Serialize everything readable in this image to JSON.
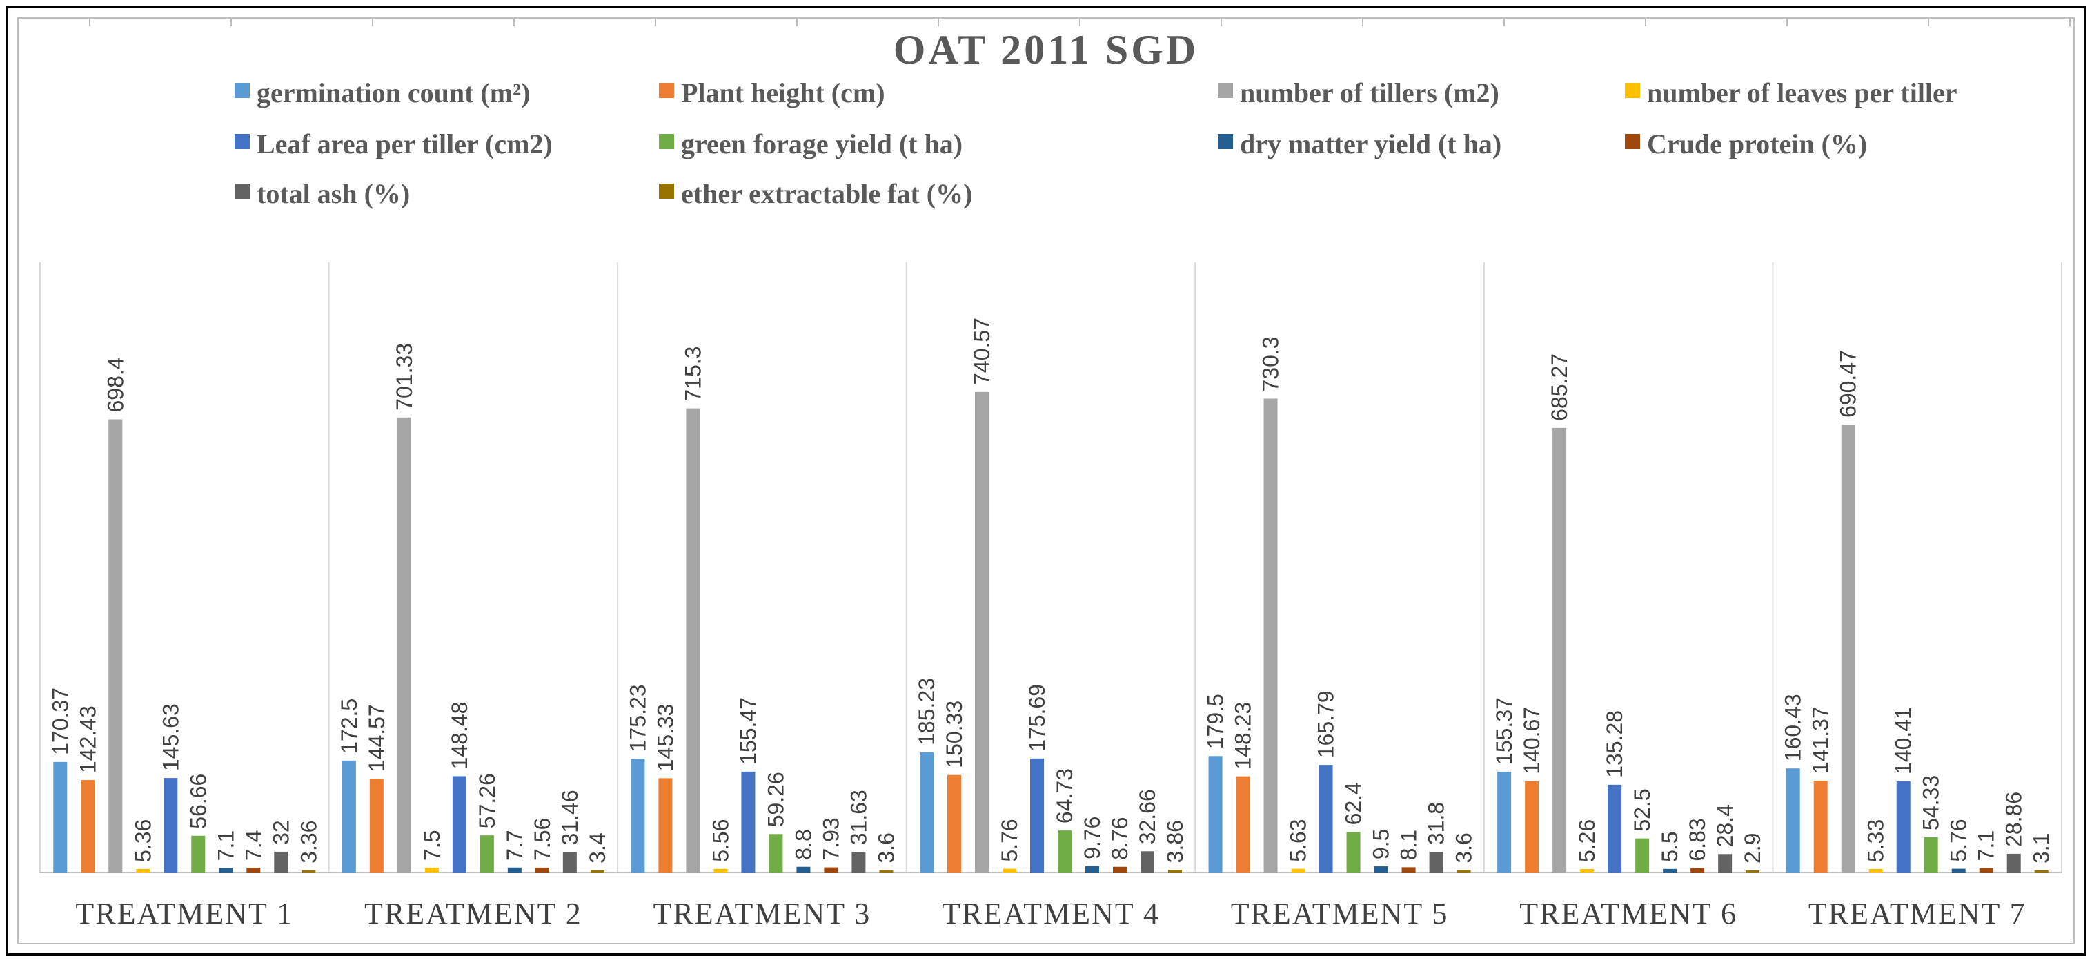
{
  "chart_data": {
    "type": "bar",
    "title": "OAT 2011 SGD",
    "xlabel": "",
    "ylabel": "",
    "ylim": [
      0,
      800
    ],
    "legend_position": "top",
    "categories": [
      "TREATMENT 1",
      "TREATMENT 2",
      "TREATMENT 3",
      "TREATMENT 4",
      "TREATMENT 5",
      "TREATMENT 6",
      "TREATMENT 7"
    ],
    "series": [
      {
        "name": "germination count (m²)",
        "color": "#5B9BD5",
        "values": [
          170.37,
          172.5,
          175.23,
          185.23,
          179.5,
          155.37,
          160.43
        ],
        "labels": [
          "170.37",
          "172.5",
          "175.23",
          "185.23",
          "179.5",
          "155.37",
          "160.43"
        ]
      },
      {
        "name": "Plant height (cm)",
        "color": "#ED7D31",
        "values": [
          142.43,
          144.57,
          145.33,
          150.33,
          148.23,
          140.67,
          141.37
        ],
        "labels": [
          "142.43",
          "144.57",
          "145.33",
          "150.33",
          "148.23",
          "140.67",
          "141.37"
        ]
      },
      {
        "name": "number of tillers (m2)",
        "color": "#A5A5A5",
        "values": [
          698.4,
          701.33,
          715.3,
          740.57,
          730.3,
          685.27,
          690.47
        ],
        "labels": [
          "698.4",
          "701.33",
          "715.3",
          "740.57",
          "730.3",
          "685.27",
          "690.47"
        ]
      },
      {
        "name": "number of leaves per tiller",
        "color": "#FFC000",
        "values": [
          5.36,
          7.5,
          5.56,
          5.76,
          5.63,
          5.26,
          5.33
        ],
        "labels": [
          "5.36",
          "7.5",
          "5.56",
          "5.76",
          "5.63",
          "5.26",
          "5.33"
        ]
      },
      {
        "name": "Leaf area per tiller (cm2)",
        "color": "#4472C4",
        "values": [
          145.63,
          148.48,
          155.47,
          175.69,
          165.79,
          135.28,
          140.41
        ],
        "labels": [
          "145.63",
          "148.48",
          "155.47",
          "175.69",
          "165.79",
          "135.28",
          "140.41"
        ]
      },
      {
        "name": "green forage yield (t ha)",
        "color": "#70AD47",
        "values": [
          56.66,
          57.26,
          59.26,
          64.73,
          62.4,
          52.5,
          54.33
        ],
        "labels": [
          "56.66",
          "57.26",
          "59.26",
          "64.73",
          "62.4",
          "52.5",
          "54.33"
        ]
      },
      {
        "name": "dry matter yield (t ha)",
        "color": "#255E91",
        "values": [
          7.1,
          7.7,
          8.8,
          9.76,
          9.5,
          5.5,
          5.76
        ],
        "labels": [
          "7.1",
          "7.7",
          "8.8",
          "9.76",
          "9.5",
          "5.5",
          "5.76"
        ]
      },
      {
        "name": "Crude protein (%)",
        "color": "#9E480E",
        "values": [
          7.4,
          7.56,
          7.93,
          8.76,
          8.1,
          6.83,
          7.1
        ],
        "labels": [
          "7.4",
          "7.56",
          "7.93",
          "8.76",
          "8.1",
          "6.83",
          "7.1"
        ]
      },
      {
        "name": "total ash (%)",
        "color": "#636363",
        "values": [
          32,
          31.46,
          31.63,
          32.66,
          31.8,
          28.4,
          28.86
        ],
        "labels": [
          "32",
          "31.46",
          "31.63",
          "32.66",
          "31.8",
          "28.4",
          "28.86"
        ]
      },
      {
        "name": "ether extractable fat (%)",
        "color": "#997300",
        "values": [
          3.36,
          3.4,
          3.6,
          3.86,
          3.6,
          2.9,
          3.1
        ],
        "labels": [
          "3.36",
          "3.4",
          "3.6",
          "3.86",
          "3.6",
          "2.9",
          "3.1"
        ]
      }
    ]
  }
}
